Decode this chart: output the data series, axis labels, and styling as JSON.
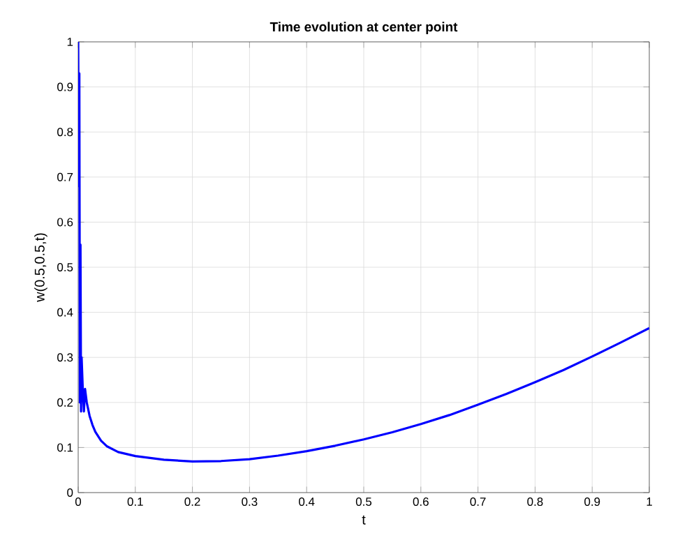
{
  "chart_data": {
    "type": "line",
    "title": "Time evolution at center point",
    "xlabel": "t",
    "ylabel": "w(0.5,0.5,t)",
    "x": [
      0,
      0.001,
      0.002,
      0.003,
      0.004,
      0.005,
      0.006,
      0.008,
      0.01,
      0.012,
      0.015,
      0.02,
      0.025,
      0.03,
      0.04,
      0.05,
      0.07,
      0.1,
      0.15,
      0.2,
      0.25,
      0.3,
      0.35,
      0.4,
      0.45,
      0.5,
      0.55,
      0.6,
      0.65,
      0.7,
      0.75,
      0.8,
      0.85,
      0.9,
      0.95,
      1.0
    ],
    "series": [
      {
        "color": "#0000ff",
        "values": [
          1.0,
          0.68,
          0.93,
          0.2,
          0.55,
          0.18,
          0.3,
          0.23,
          0.18,
          0.23,
          0.2,
          0.17,
          0.15,
          0.135,
          0.115,
          0.103,
          0.09,
          0.081,
          0.073,
          0.069,
          0.07,
          0.074,
          0.082,
          0.092,
          0.104,
          0.118,
          0.134,
          0.152,
          0.172,
          0.195,
          0.219,
          0.245,
          0.272,
          0.302,
          0.333,
          0.365
        ]
      }
    ],
    "xlim": [
      0,
      1
    ],
    "ylim": [
      0,
      1
    ],
    "xticks": [
      0,
      0.1,
      0.2,
      0.3,
      0.4,
      0.5,
      0.6,
      0.7,
      0.8,
      0.9,
      1
    ],
    "yticks": [
      0,
      0.1,
      0.2,
      0.3,
      0.4,
      0.5,
      0.6,
      0.7,
      0.8,
      0.9,
      1
    ],
    "grid": true,
    "line_style": "solid"
  }
}
